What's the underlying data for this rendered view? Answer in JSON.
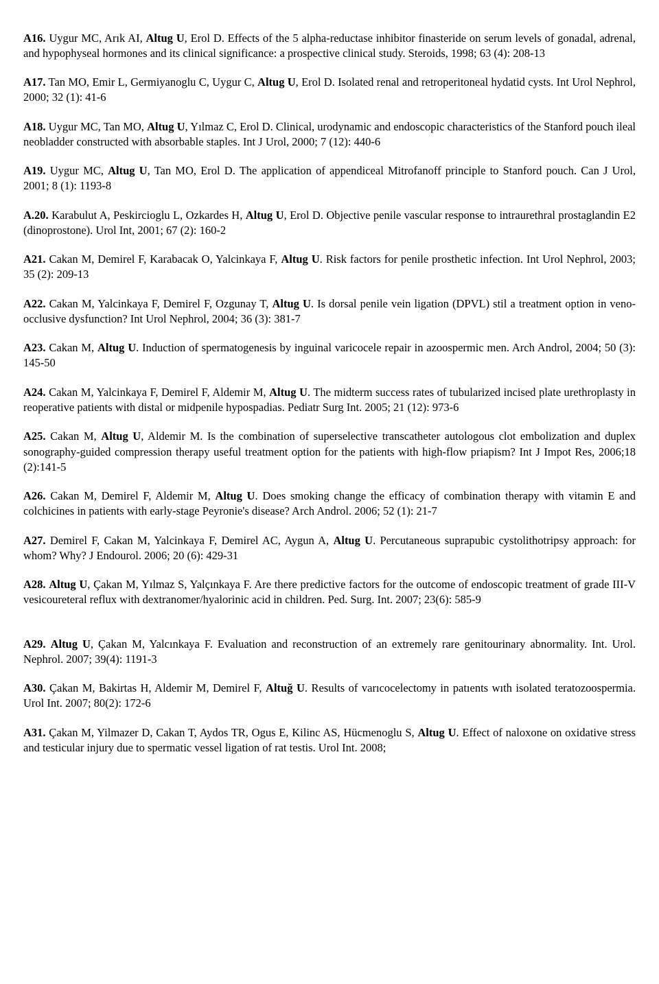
{
  "entries": [
    {
      "id": "A16",
      "label": "A16.",
      "prefix": " Uygur MC, Arık AI, ",
      "boldName": "Altug U",
      "suffix": ", Erol D. Effects of the 5 alpha-reductase inhibitor finasteride on serum levels of gonadal, adrenal, and hypophyseal hormones and its clinical significance: a prospective clinical study. Steroids, 1998; 63 (4): 208-13"
    },
    {
      "id": "A17",
      "label": "A17.",
      "prefix": " Tan MO, Emir L, Germiyanoglu C, Uygur C, ",
      "boldName": "Altug U",
      "suffix": ", Erol D. Isolated renal and retroperitoneal hydatid cysts. Int Urol Nephrol, 2000; 32 (1): 41-6"
    },
    {
      "id": "A18",
      "label": "A18.",
      "prefix": " Uygur MC, Tan MO, ",
      "boldName": "Altug U",
      "suffix": ", Yılmaz C, Erol D. Clinical, urodynamic and endoscopic characteristics of the Stanford pouch ileal neobladder constructed with absorbable staples. Int J Urol, 2000; 7 (12): 440-6"
    },
    {
      "id": "A19",
      "label": "A19.",
      "prefix": " Uygur MC, ",
      "boldName": "Altug U",
      "suffix": ", Tan MO, Erol D. The application of appendiceal Mitrofanoff principle to Stanford pouch. Can J Urol, 2001; 8 (1): 1193-8"
    },
    {
      "id": "A20",
      "label": "A.20.",
      "prefix": " Karabulut A, Peskircioglu L, Ozkardes H, ",
      "boldName": "Altug U",
      "suffix": ", Erol D. Objective penile vascular response to intraurethral prostaglandin E2 (dinoprostone). Urol Int, 2001; 67 (2): 160-2"
    },
    {
      "id": "A21",
      "label": "A21.",
      "prefix": " Cakan M, Demirel F, Karabacak O, Yalcinkaya F, ",
      "boldName": "Altug U",
      "suffix": ". Risk factors for penile prosthetic infection. Int Urol Nephrol, 2003; 35 (2): 209-13"
    },
    {
      "id": "A22",
      "label": "A22.",
      "prefix": " Cakan M, Yalcinkaya F, Demirel F, Ozgunay T, ",
      "boldName": "Altug U",
      "suffix": ". Is dorsal penile vein ligation (DPVL) stil a treatment option in veno-occlusive dysfunction? Int Urol Nephrol, 2004; 36 (3): 381-7"
    },
    {
      "id": "A23",
      "label": "A23.",
      "prefix": " Cakan M, ",
      "boldName": "Altug U",
      "suffix": ". Induction of spermatogenesis by inguinal varicocele repair in azoospermic men. Arch Androl, 2004; 50 (3): 145-50"
    },
    {
      "id": "A24",
      "label": "A24.",
      "prefix": " Cakan M, Yalcinkaya F, Demirel F, Aldemir M, ",
      "boldName": "Altug U",
      "suffix": ". The midterm success rates of tubularized incised plate urethroplasty in reoperative patients with distal or midpenile hypospadias. Pediatr Surg Int. 2005; 21 (12): 973-6"
    },
    {
      "id": "A25",
      "label": "A25.",
      "prefix": " Cakan M, ",
      "boldName": "Altug U",
      "suffix": ", Aldemir M. Is the combination of superselective transcatheter autologous clot embolization and duplex sonography-guided compression therapy useful treatment option for the patients with high-flow priapism? Int J Impot Res, 2006;18 (2):141-5"
    },
    {
      "id": "A26",
      "label": "A26.",
      "prefix": " Cakan M, Demirel F, Aldemir M, ",
      "boldName": "Altug U",
      "suffix": ". Does smoking change the efficacy of combination therapy with vitamin E and colchicines in patients with early-stage Peyronie's disease? Arch Androl. 2006; 52 (1): 21-7"
    },
    {
      "id": "A27",
      "label": "A27.",
      "prefix": " Demirel F, Cakan M, Yalcinkaya F, Demirel AC, Aygun A, ",
      "boldName": "Altug U",
      "suffix": ". Percutaneous suprapubic cystolithotripsy approach: for whom? Why? J Endourol. 2006; 20 (6): 429-31"
    },
    {
      "id": "A28",
      "label": "A28.",
      "prefix": " ",
      "boldName": "Altug U",
      "suffix": ", Çakan M, Yılmaz S, Yalçınkaya F. Are there predictive factors for the outcome of endoscopic treatment of grade III-V vesicoureteral reflux with dextranomer/hyalorinic acid in children. Ped. Surg. Int. 2007; 23(6): 585-9"
    },
    {
      "id": "A29",
      "label": "A29.",
      "prefix": " ",
      "boldName": "Altug U",
      "suffix": ", Çakan M, Yalcınkaya F. Evaluation and reconstruction of an extremely rare genitourinary abnormality. Int. Urol. Nephrol. 2007; 39(4): 1191-3"
    },
    {
      "id": "A30",
      "label": "A30.",
      "prefix": " Çakan M, Bakirtas H, Aldemir M, Demirel F, ",
      "boldName": "Altuğ U",
      "suffix": ". Results of varıcocelectomy in patıents wıth isolated teratozoospermia. Urol Int. 2007; 80(2): 172-6"
    },
    {
      "id": "A31",
      "label": "A31.",
      "prefix": " Çakan M, Yilmazer D, Cakan T, Aydos TR, Ogus E, Kilinc AS, Hücmenoglu S, ",
      "boldName": "Altug U",
      "suffix": ". Effect of naloxone on oxidative stress and testicular injury due to spermatic vessel ligation of rat testis. Urol Int. 2008;"
    }
  ],
  "extraGap": {
    "A28": true
  }
}
